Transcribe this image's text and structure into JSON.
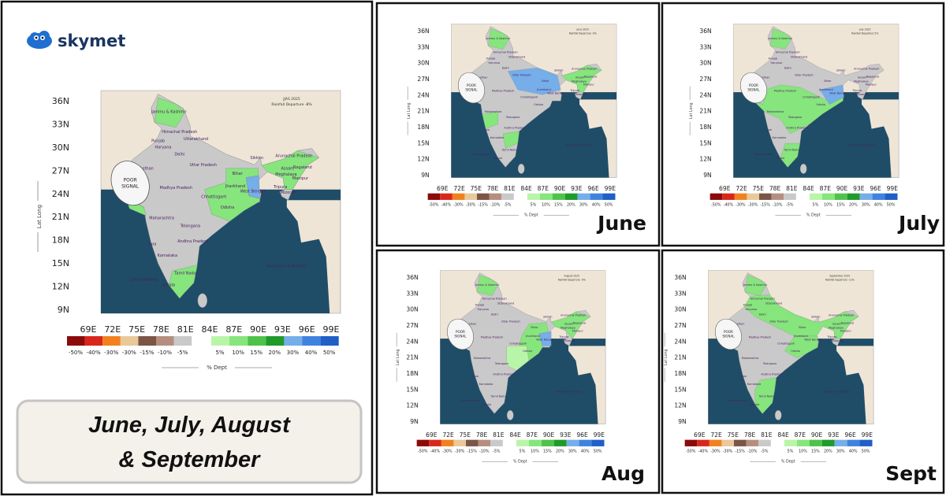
{
  "header": {
    "logo": "skymet"
  },
  "map": {
    "axis_label": "Lat Long",
    "lat_ticks": [
      "36N",
      "33N",
      "30N",
      "27N",
      "24N",
      "21N",
      "18N",
      "15N",
      "12N",
      "9N"
    ],
    "lon_ticks": [
      "69E",
      "72E",
      "75E",
      "78E",
      "81E",
      "84E",
      "87E",
      "90E",
      "93E",
      "96E",
      "99E"
    ],
    "legend_labels": [
      "-50%",
      "-40%",
      "-30%",
      "-30%",
      "-15%",
      "-10%",
      "-5%",
      "5%",
      "10%",
      "15%",
      "20%",
      "30%",
      "40%",
      "50%"
    ],
    "legend_colors": [
      "#8b0a0a",
      "#d9261c",
      "#f2811d",
      "#e9c89a",
      "#7b5546",
      "#b58e80",
      "#c9c9c9",
      "#b9f5a8",
      "#86e57c",
      "#4fc24c",
      "#1f9a2b",
      "#75aee9",
      "#3f83de",
      "#1f5fc6"
    ],
    "legend_title": "% Dept",
    "poor_signal": [
      "POOR",
      "SIGNAL"
    ],
    "states": [
      "Jammu & Kashmir",
      "Himachal Pradesh",
      "Punjab",
      "Uttarakhand",
      "Haryana",
      "Delhi",
      "Rajasthan",
      "Uttar Pradesh",
      "Bihar",
      "Sikkim",
      "Arunachal Pradesh",
      "Assam",
      "Meghalaya",
      "Nagaland",
      "Manipur",
      "Tripura",
      "Mizoram",
      "Jharkhand",
      "West Bengal",
      "Gujarat",
      "Madhya Pradesh",
      "Chhattisgarh",
      "Odisha",
      "Maharashtra",
      "Telangana",
      "Goa",
      "Andhra Pradesh",
      "Karnataka",
      "Tamil Nadu",
      "Kerala",
      "Lakshadweep",
      "Andaman & Nicobar"
    ]
  },
  "panels": [
    {
      "title": "JJAS 2025",
      "subtitle": "Rainfall Departure -8%"
    },
    {
      "month": "June",
      "title": "June 2025",
      "subtitle": "Rainfall Departure -9%"
    },
    {
      "month": "July",
      "title": "July 2025",
      "subtitle": "Rainfall Departure 5%"
    },
    {
      "month": "Aug",
      "title": "August 2025",
      "subtitle": "Rainfall Departure -9%"
    },
    {
      "month": "Sept",
      "title": "September 2025",
      "subtitle": "Rainfall Departure -11%"
    }
  ],
  "caption": [
    "June, July, August",
    "& September"
  ]
}
